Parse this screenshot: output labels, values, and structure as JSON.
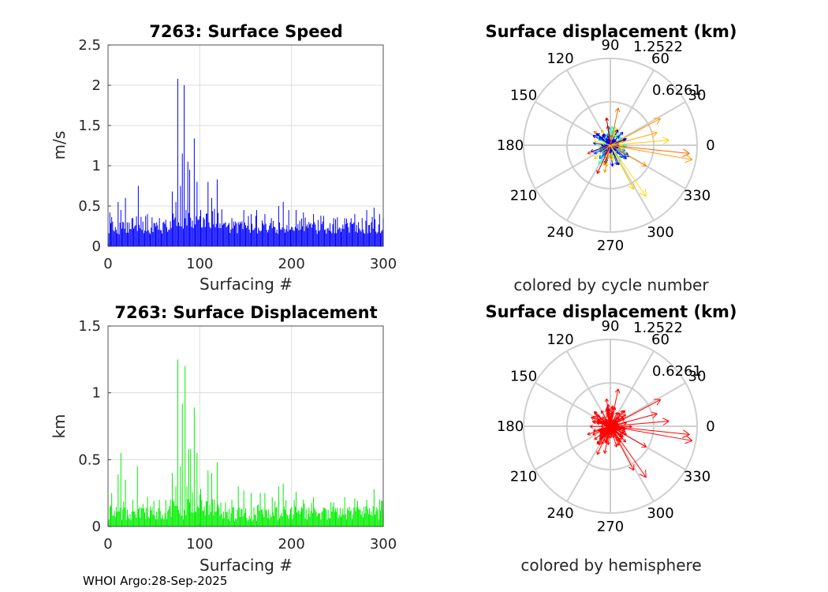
{
  "chart_data": [
    {
      "type": "bar",
      "title": "7263: Surface Speed",
      "xlabel": "Surfacing #",
      "ylabel": "m/s",
      "xlim": [
        0,
        300
      ],
      "ylim": [
        0,
        2.5
      ],
      "xticks": [
        "0",
        "100",
        "200",
        "300"
      ],
      "yticks": [
        "0",
        "0.5",
        "1",
        "1.5",
        "2",
        "2.5"
      ],
      "color": "#0000ff",
      "n_points": 300,
      "baseline_values": [
        0.15,
        0.38
      ],
      "peaks": [
        {
          "x": 2,
          "value": 0.42
        },
        {
          "x": 11,
          "value": 0.55
        },
        {
          "x": 14,
          "value": 0.45
        },
        {
          "x": 19,
          "value": 0.6
        },
        {
          "x": 27,
          "value": 0.35
        },
        {
          "x": 33,
          "value": 0.75
        },
        {
          "x": 43,
          "value": 0.4
        },
        {
          "x": 56,
          "value": 0.35
        },
        {
          "x": 63,
          "value": 0.33
        },
        {
          "x": 70,
          "value": 0.68
        },
        {
          "x": 74,
          "value": 0.55
        },
        {
          "x": 76,
          "value": 2.08
        },
        {
          "x": 79,
          "value": 0.75
        },
        {
          "x": 81,
          "value": 1.15
        },
        {
          "x": 83,
          "value": 2.0
        },
        {
          "x": 85,
          "value": 0.45
        },
        {
          "x": 87,
          "value": 1.05
        },
        {
          "x": 89,
          "value": 0.95
        },
        {
          "x": 94,
          "value": 1.34
        },
        {
          "x": 97,
          "value": 0.8
        },
        {
          "x": 101,
          "value": 0.45
        },
        {
          "x": 109,
          "value": 0.8
        },
        {
          "x": 113,
          "value": 0.6
        },
        {
          "x": 119,
          "value": 0.83
        },
        {
          "x": 128,
          "value": 0.3
        },
        {
          "x": 135,
          "value": 0.35
        },
        {
          "x": 142,
          "value": 0.3
        },
        {
          "x": 148,
          "value": 0.45
        },
        {
          "x": 156,
          "value": 0.4
        },
        {
          "x": 162,
          "value": 0.45
        },
        {
          "x": 171,
          "value": 0.4
        },
        {
          "x": 178,
          "value": 0.35
        },
        {
          "x": 186,
          "value": 0.5
        },
        {
          "x": 191,
          "value": 0.55
        },
        {
          "x": 197,
          "value": 0.45
        },
        {
          "x": 205,
          "value": 0.45
        },
        {
          "x": 213,
          "value": 0.42
        },
        {
          "x": 224,
          "value": 0.4
        },
        {
          "x": 232,
          "value": 0.38
        },
        {
          "x": 246,
          "value": 0.35
        },
        {
          "x": 258,
          "value": 0.35
        },
        {
          "x": 269,
          "value": 0.4
        },
        {
          "x": 277,
          "value": 0.35
        },
        {
          "x": 282,
          "value": 0.45
        },
        {
          "x": 290,
          "value": 0.48
        },
        {
          "x": 296,
          "value": 0.4
        }
      ]
    },
    {
      "type": "bar",
      "title": "7263: Surface Displacement",
      "xlabel": "Surfacing #",
      "ylabel": "km",
      "xlim": [
        0,
        300
      ],
      "ylim": [
        0,
        1.5
      ],
      "xticks": [
        "0",
        "100",
        "200",
        "300"
      ],
      "yticks": [
        "0",
        "0.5",
        "1",
        "1.5"
      ],
      "color": "#00ee00",
      "n_points": 300,
      "baseline_values": [
        0.04,
        0.2
      ],
      "peaks": [
        {
          "x": 4,
          "value": 0.25
        },
        {
          "x": 11,
          "value": 0.39
        },
        {
          "x": 14,
          "value": 0.55
        },
        {
          "x": 19,
          "value": 0.35
        },
        {
          "x": 27,
          "value": 0.2
        },
        {
          "x": 32,
          "value": 0.45
        },
        {
          "x": 43,
          "value": 0.22
        },
        {
          "x": 56,
          "value": 0.2
        },
        {
          "x": 63,
          "value": 0.2
        },
        {
          "x": 70,
          "value": 0.4
        },
        {
          "x": 74,
          "value": 0.3
        },
        {
          "x": 76,
          "value": 1.25
        },
        {
          "x": 79,
          "value": 0.45
        },
        {
          "x": 81,
          "value": 0.92
        },
        {
          "x": 84,
          "value": 1.2
        },
        {
          "x": 86,
          "value": 0.3
        },
        {
          "x": 88,
          "value": 0.58
        },
        {
          "x": 90,
          "value": 0.58
        },
        {
          "x": 94,
          "value": 0.89
        },
        {
          "x": 97,
          "value": 0.55
        },
        {
          "x": 101,
          "value": 0.28
        },
        {
          "x": 109,
          "value": 0.42
        },
        {
          "x": 113,
          "value": 0.4
        },
        {
          "x": 119,
          "value": 0.48
        },
        {
          "x": 128,
          "value": 0.18
        },
        {
          "x": 135,
          "value": 0.2
        },
        {
          "x": 142,
          "value": 0.3
        },
        {
          "x": 148,
          "value": 0.27
        },
        {
          "x": 156,
          "value": 0.25
        },
        {
          "x": 166,
          "value": 0.25
        },
        {
          "x": 171,
          "value": 0.25
        },
        {
          "x": 179,
          "value": 0.22
        },
        {
          "x": 186,
          "value": 0.3
        },
        {
          "x": 191,
          "value": 0.32
        },
        {
          "x": 205,
          "value": 0.26
        },
        {
          "x": 213,
          "value": 0.2
        },
        {
          "x": 224,
          "value": 0.22
        },
        {
          "x": 246,
          "value": 0.18
        },
        {
          "x": 258,
          "value": 0.22
        },
        {
          "x": 269,
          "value": 0.21
        },
        {
          "x": 282,
          "value": 0.2
        },
        {
          "x": 290,
          "value": 0.28
        },
        {
          "x": 296,
          "value": 0.2
        }
      ]
    },
    {
      "type": "polar-compass",
      "title": "Surface displacement (km)",
      "caption": "colored by cycle number",
      "rmax": 1.2522,
      "rings": [
        0.6261,
        1.2522
      ],
      "ring_labels": [
        "0.6261",
        "1.2522"
      ],
      "angle_labels": [
        "0",
        "30",
        "60",
        "90",
        "120",
        "150",
        "180",
        "210",
        "240",
        "270",
        "300",
        "330"
      ],
      "coloring": "cycle number (jet colormap)",
      "major_arrows": [
        {
          "angle_deg": -10,
          "r_km": 1.2,
          "color": "#ff9900"
        },
        {
          "angle_deg": -6,
          "r_km": 1.15,
          "color": "#ff6600"
        },
        {
          "angle_deg": 5,
          "r_km": 0.85,
          "color": "#ffcc00"
        },
        {
          "angle_deg": 28,
          "r_km": 0.82,
          "color": "#ff9900"
        },
        {
          "angle_deg": 15,
          "r_km": 0.7,
          "color": "#ffaa00"
        },
        {
          "angle_deg": -55,
          "r_km": 0.9,
          "color": "#ffdd00"
        },
        {
          "angle_deg": -62,
          "r_km": 0.72,
          "color": "#ffcc00"
        },
        {
          "angle_deg": -30,
          "r_km": 0.6,
          "color": "#ff8800"
        },
        {
          "angle_deg": 78,
          "r_km": 0.55,
          "color": "#ff6600"
        },
        {
          "angle_deg": 98,
          "r_km": 0.4,
          "color": "#aa0000"
        },
        {
          "angle_deg": 200,
          "r_km": 0.35,
          "color": "#ff3300"
        },
        {
          "angle_deg": 245,
          "r_km": 0.45,
          "color": "#cc0000"
        },
        {
          "angle_deg": 258,
          "r_km": 0.4,
          "color": "#ff9900"
        },
        {
          "angle_deg": 220,
          "r_km": 0.3,
          "color": "#ffcc00"
        },
        {
          "angle_deg": 165,
          "r_km": 0.25,
          "color": "#ffff00"
        }
      ]
    },
    {
      "type": "polar-compass",
      "title": "Surface displacement (km)",
      "caption": "colored by hemisphere",
      "rmax": 1.2522,
      "rings": [
        0.6261,
        1.2522
      ],
      "ring_labels": [
        "0.6261",
        "1.2522"
      ],
      "angle_labels": [
        "0",
        "30",
        "60",
        "90",
        "120",
        "150",
        "180",
        "210",
        "240",
        "270",
        "300",
        "330"
      ],
      "coloring": "hemisphere",
      "major_arrows": [
        {
          "angle_deg": -10,
          "r_km": 1.2,
          "color": "#ff0000"
        },
        {
          "angle_deg": -6,
          "r_km": 1.15,
          "color": "#ff0000"
        },
        {
          "angle_deg": 5,
          "r_km": 0.85,
          "color": "#ff0000"
        },
        {
          "angle_deg": 28,
          "r_km": 0.82,
          "color": "#ff0000"
        },
        {
          "angle_deg": 15,
          "r_km": 0.7,
          "color": "#ff0000"
        },
        {
          "angle_deg": -55,
          "r_km": 0.9,
          "color": "#ff0000"
        },
        {
          "angle_deg": -62,
          "r_km": 0.72,
          "color": "#ff0000"
        },
        {
          "angle_deg": -30,
          "r_km": 0.6,
          "color": "#ff0000"
        },
        {
          "angle_deg": 78,
          "r_km": 0.55,
          "color": "#ff0000"
        },
        {
          "angle_deg": 98,
          "r_km": 0.4,
          "color": "#ff0000"
        },
        {
          "angle_deg": 200,
          "r_km": 0.35,
          "color": "#ff0000"
        },
        {
          "angle_deg": 245,
          "r_km": 0.45,
          "color": "#ff0000"
        },
        {
          "angle_deg": 258,
          "r_km": 0.4,
          "color": "#ff0000"
        },
        {
          "angle_deg": 220,
          "r_km": 0.3,
          "color": "#ff0000"
        },
        {
          "angle_deg": 165,
          "r_km": 0.25,
          "color": "#ff0000"
        }
      ]
    }
  ],
  "footer": "WHOI Argo:28-Sep-2025"
}
